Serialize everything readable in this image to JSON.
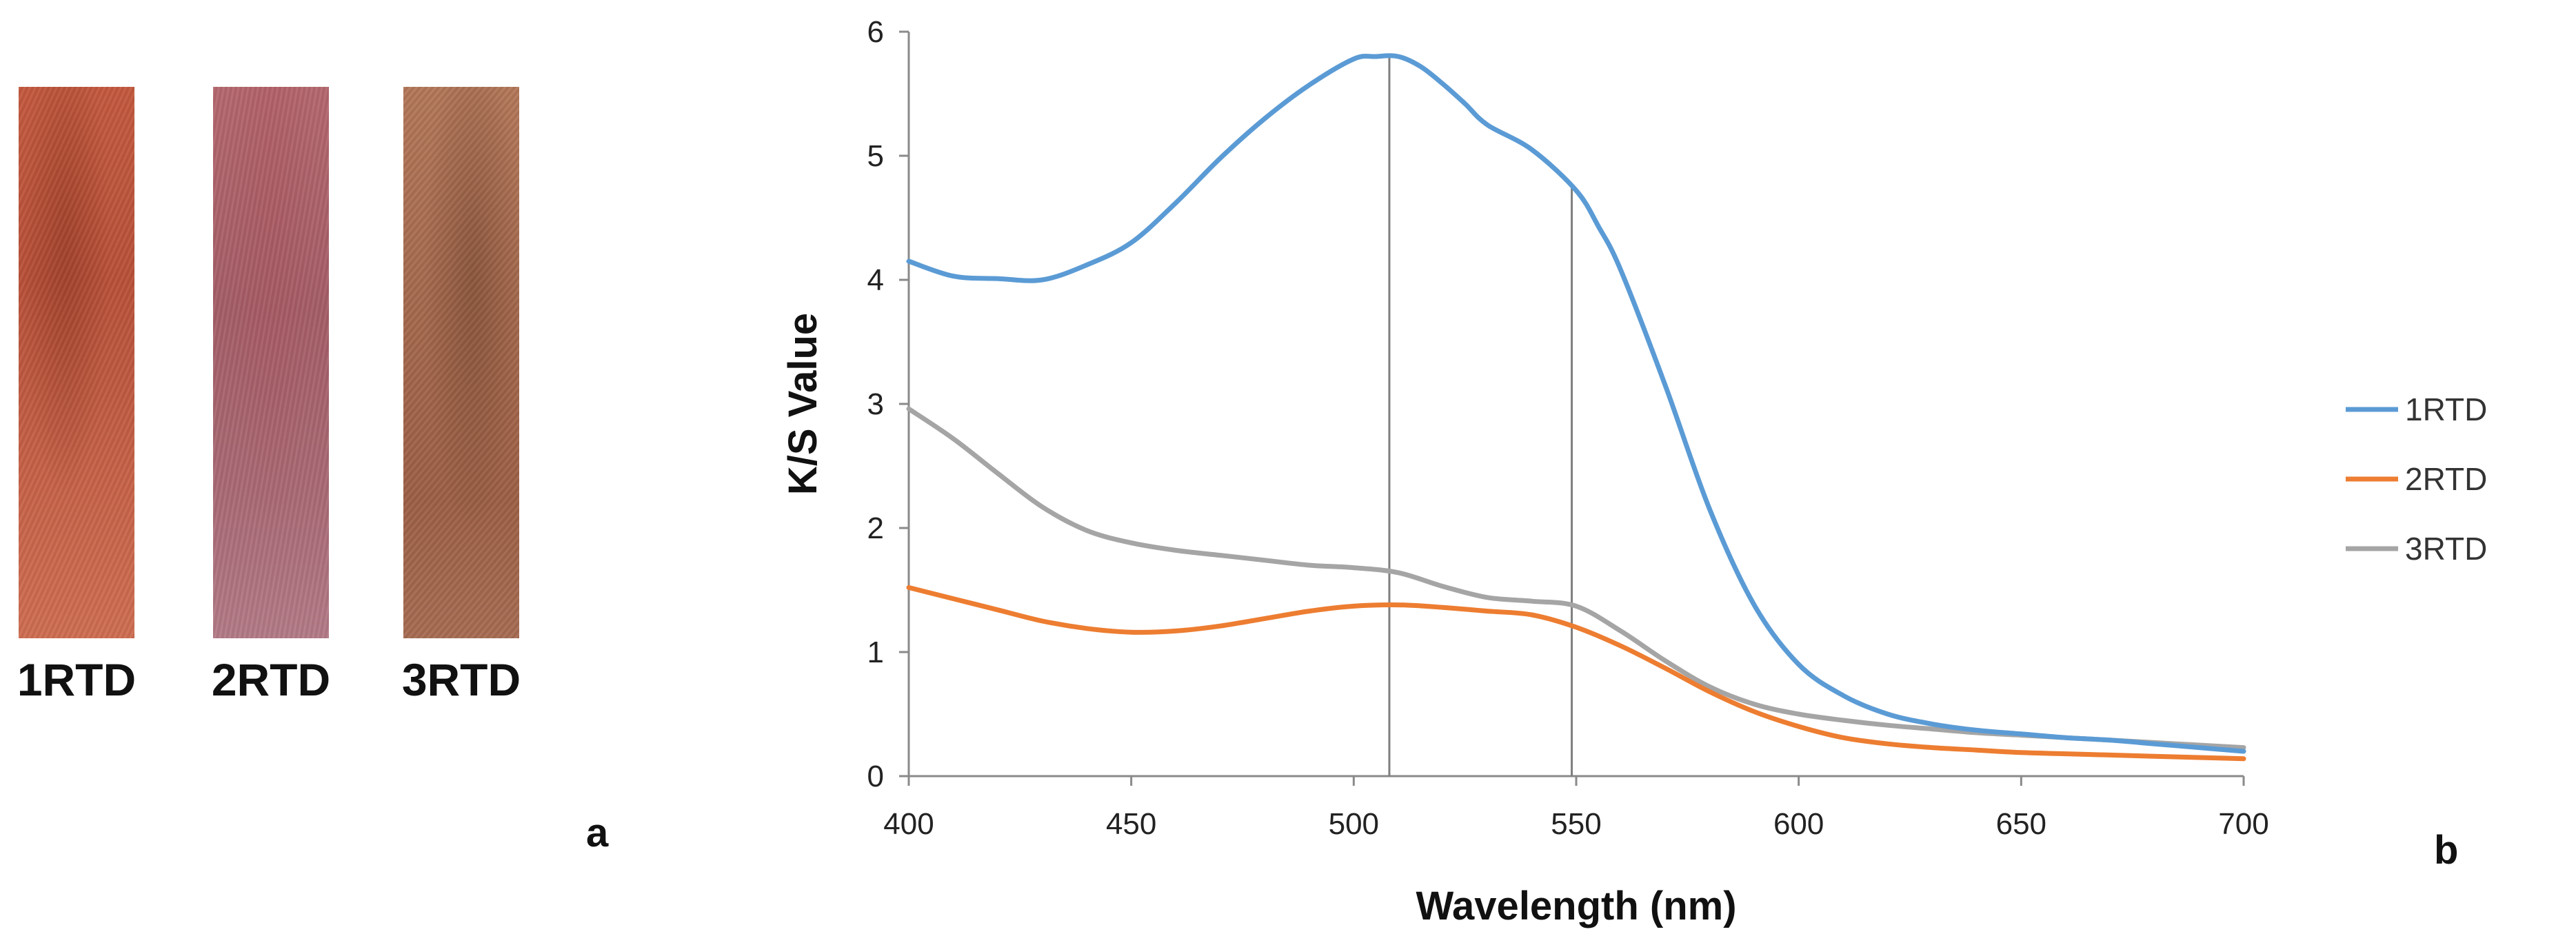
{
  "panel_a": {
    "letter": "a",
    "samples": [
      {
        "label": "1RTD",
        "color": "#c45a3f"
      },
      {
        "label": "2RTD",
        "color": "#a45d66"
      },
      {
        "label": "3RTD",
        "color": "#a66a4e"
      }
    ]
  },
  "panel_b": {
    "letter": "b"
  },
  "chart_data": {
    "type": "line",
    "title": "",
    "xlabel": "Wavelength (nm)",
    "ylabel": "K/S Value",
    "xlim": [
      400,
      700
    ],
    "ylim": [
      0,
      6
    ],
    "xticks": [
      400,
      450,
      500,
      550,
      600,
      650,
      700
    ],
    "yticks": [
      0,
      1,
      2,
      3,
      4,
      5,
      6
    ],
    "grid": false,
    "legend_position": "right",
    "reference_lines_x": [
      508,
      549
    ],
    "series": [
      {
        "name": "1RTD",
        "color": "#5b9bd5",
        "x": [
          400,
          410,
          420,
          430,
          440,
          450,
          460,
          470,
          480,
          490,
          500,
          505,
          510,
          515,
          520,
          525,
          530,
          540,
          550,
          555,
          560,
          570,
          580,
          590,
          600,
          610,
          620,
          630,
          640,
          650,
          660,
          670,
          680,
          690,
          700
        ],
        "y": [
          4.15,
          4.03,
          4.01,
          4.0,
          4.12,
          4.3,
          4.62,
          4.98,
          5.3,
          5.57,
          5.78,
          5.8,
          5.8,
          5.72,
          5.58,
          5.42,
          5.25,
          5.05,
          4.72,
          4.43,
          4.08,
          3.15,
          2.15,
          1.38,
          0.9,
          0.65,
          0.5,
          0.42,
          0.37,
          0.34,
          0.31,
          0.29,
          0.26,
          0.23,
          0.2
        ]
      },
      {
        "name": "2RTD",
        "color": "#ed7d31",
        "x": [
          400,
          410,
          420,
          430,
          440,
          450,
          460,
          470,
          480,
          490,
          500,
          510,
          520,
          530,
          540,
          550,
          560,
          570,
          580,
          590,
          600,
          610,
          620,
          630,
          640,
          650,
          660,
          670,
          680,
          690,
          700
        ],
        "y": [
          1.52,
          1.43,
          1.34,
          1.25,
          1.19,
          1.16,
          1.17,
          1.21,
          1.27,
          1.33,
          1.37,
          1.38,
          1.36,
          1.33,
          1.3,
          1.2,
          1.05,
          0.87,
          0.68,
          0.52,
          0.4,
          0.31,
          0.26,
          0.23,
          0.21,
          0.19,
          0.18,
          0.17,
          0.16,
          0.15,
          0.14
        ]
      },
      {
        "name": "3RTD",
        "color": "#a5a5a5",
        "x": [
          400,
          410,
          420,
          430,
          440,
          450,
          460,
          470,
          480,
          490,
          500,
          510,
          520,
          530,
          540,
          550,
          560,
          570,
          580,
          590,
          600,
          610,
          620,
          630,
          640,
          650,
          660,
          670,
          680,
          690,
          700
        ],
        "y": [
          2.96,
          2.72,
          2.44,
          2.17,
          1.98,
          1.88,
          1.82,
          1.78,
          1.74,
          1.7,
          1.68,
          1.64,
          1.53,
          1.44,
          1.41,
          1.37,
          1.17,
          0.93,
          0.72,
          0.58,
          0.5,
          0.45,
          0.41,
          0.38,
          0.35,
          0.33,
          0.31,
          0.29,
          0.27,
          0.25,
          0.23
        ]
      }
    ]
  }
}
